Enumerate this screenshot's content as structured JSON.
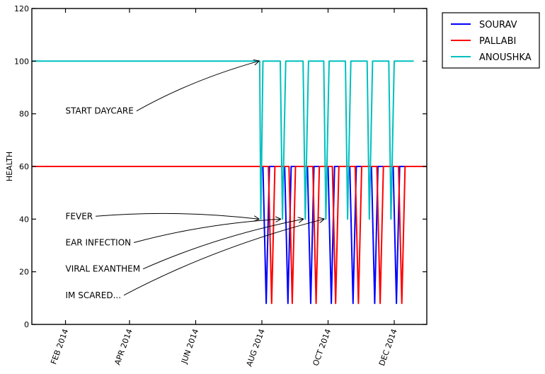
{
  "chart_data": {
    "type": "line",
    "title": "",
    "xlabel": "",
    "ylabel": "HEALTH",
    "ylim": [
      0,
      120
    ],
    "yticks": [
      0,
      20,
      40,
      60,
      80,
      100,
      120
    ],
    "xlim": [
      "2014-01-01",
      "2014-12-31"
    ],
    "xticks": [
      {
        "date": "2014-02-01",
        "label": "FEB 2014"
      },
      {
        "date": "2014-04-01",
        "label": "APR 2014"
      },
      {
        "date": "2014-06-01",
        "label": "JUN 2014"
      },
      {
        "date": "2014-08-01",
        "label": "AUG 2014"
      },
      {
        "date": "2014-10-01",
        "label": "OCT 2014"
      },
      {
        "date": "2014-12-01",
        "label": "DEC 2014"
      }
    ],
    "grid": false,
    "legend_position": "outside-top-right",
    "series": [
      {
        "name": "SOURAV",
        "color": "#0000ff",
        "points": [
          [
            "2014-01-01",
            60
          ],
          [
            "2014-07-31",
            60
          ],
          [
            "2014-08-02",
            60
          ],
          [
            "2014-08-05",
            8
          ],
          [
            "2014-08-08",
            60
          ],
          [
            "2014-08-22",
            60
          ],
          [
            "2014-08-25",
            8
          ],
          [
            "2014-08-28",
            60
          ],
          [
            "2014-09-12",
            60
          ],
          [
            "2014-09-15",
            8
          ],
          [
            "2014-09-18",
            60
          ],
          [
            "2014-10-01",
            60
          ],
          [
            "2014-10-04",
            8
          ],
          [
            "2014-10-07",
            60
          ],
          [
            "2014-10-21",
            60
          ],
          [
            "2014-10-24",
            8
          ],
          [
            "2014-10-27",
            60
          ],
          [
            "2014-11-10",
            60
          ],
          [
            "2014-11-13",
            8
          ],
          [
            "2014-11-16",
            60
          ],
          [
            "2014-11-30",
            60
          ],
          [
            "2014-12-03",
            8
          ],
          [
            "2014-12-06",
            60
          ],
          [
            "2014-12-31",
            60
          ]
        ]
      },
      {
        "name": "PALLABI",
        "color": "#ff0000",
        "points": [
          [
            "2014-01-01",
            60
          ],
          [
            "2014-07-31",
            60
          ],
          [
            "2014-08-07",
            60
          ],
          [
            "2014-08-10",
            8
          ],
          [
            "2014-08-13",
            60
          ],
          [
            "2014-08-26",
            60
          ],
          [
            "2014-08-29",
            8
          ],
          [
            "2014-09-01",
            60
          ],
          [
            "2014-09-17",
            60
          ],
          [
            "2014-09-20",
            8
          ],
          [
            "2014-09-23",
            60
          ],
          [
            "2014-10-05",
            60
          ],
          [
            "2014-10-08",
            8
          ],
          [
            "2014-10-11",
            60
          ],
          [
            "2014-10-26",
            60
          ],
          [
            "2014-10-29",
            8
          ],
          [
            "2014-11-01",
            60
          ],
          [
            "2014-11-15",
            60
          ],
          [
            "2014-11-18",
            8
          ],
          [
            "2014-11-21",
            60
          ],
          [
            "2014-12-05",
            60
          ],
          [
            "2014-12-08",
            8
          ],
          [
            "2014-12-11",
            60
          ],
          [
            "2014-12-31",
            60
          ]
        ]
      },
      {
        "name": "ANOUSHKA",
        "color": "#00bfbf",
        "points": [
          [
            "2014-01-01",
            100
          ],
          [
            "2014-07-25",
            100
          ],
          [
            "2014-07-30",
            100
          ],
          [
            "2014-07-31",
            40
          ],
          [
            "2014-08-02",
            100
          ],
          [
            "2014-08-10",
            100
          ],
          [
            "2014-08-18",
            100
          ],
          [
            "2014-08-20",
            40
          ],
          [
            "2014-08-23",
            100
          ],
          [
            "2014-09-01",
            100
          ],
          [
            "2014-09-08",
            100
          ],
          [
            "2014-09-10",
            40
          ],
          [
            "2014-09-13",
            100
          ],
          [
            "2014-09-20",
            100
          ],
          [
            "2014-09-27",
            100
          ],
          [
            "2014-09-29",
            40
          ],
          [
            "2014-10-02",
            100
          ],
          [
            "2014-10-10",
            100
          ],
          [
            "2014-10-17",
            100
          ],
          [
            "2014-10-19",
            40
          ],
          [
            "2014-10-22",
            100
          ],
          [
            "2014-10-30",
            100
          ],
          [
            "2014-11-06",
            100
          ],
          [
            "2014-11-08",
            40
          ],
          [
            "2014-11-11",
            100
          ],
          [
            "2014-11-18",
            100
          ],
          [
            "2014-11-26",
            100
          ],
          [
            "2014-11-28",
            40
          ],
          [
            "2014-12-01",
            100
          ],
          [
            "2014-12-10",
            100
          ],
          [
            "2014-12-19",
            100
          ]
        ]
      }
    ],
    "annotations": [
      {
        "text": "START DAYCARE",
        "text_at": [
          "2014-02-01",
          80
        ],
        "arrow_to": [
          "2014-07-29",
          100
        ]
      },
      {
        "text": "FEVER",
        "text_at": [
          "2014-02-01",
          40
        ],
        "arrow_to": [
          "2014-07-29",
          40
        ]
      },
      {
        "text": "EAR INFECTION",
        "text_at": [
          "2014-02-01",
          30
        ],
        "arrow_to": [
          "2014-08-18",
          40
        ]
      },
      {
        "text": "VIRAL EXANTHEM",
        "text_at": [
          "2014-02-01",
          20
        ],
        "arrow_to": [
          "2014-09-08",
          40
        ]
      },
      {
        "text": "IM SCARED...",
        "text_at": [
          "2014-02-01",
          10
        ],
        "arrow_to": [
          "2014-09-27",
          40
        ]
      }
    ]
  }
}
